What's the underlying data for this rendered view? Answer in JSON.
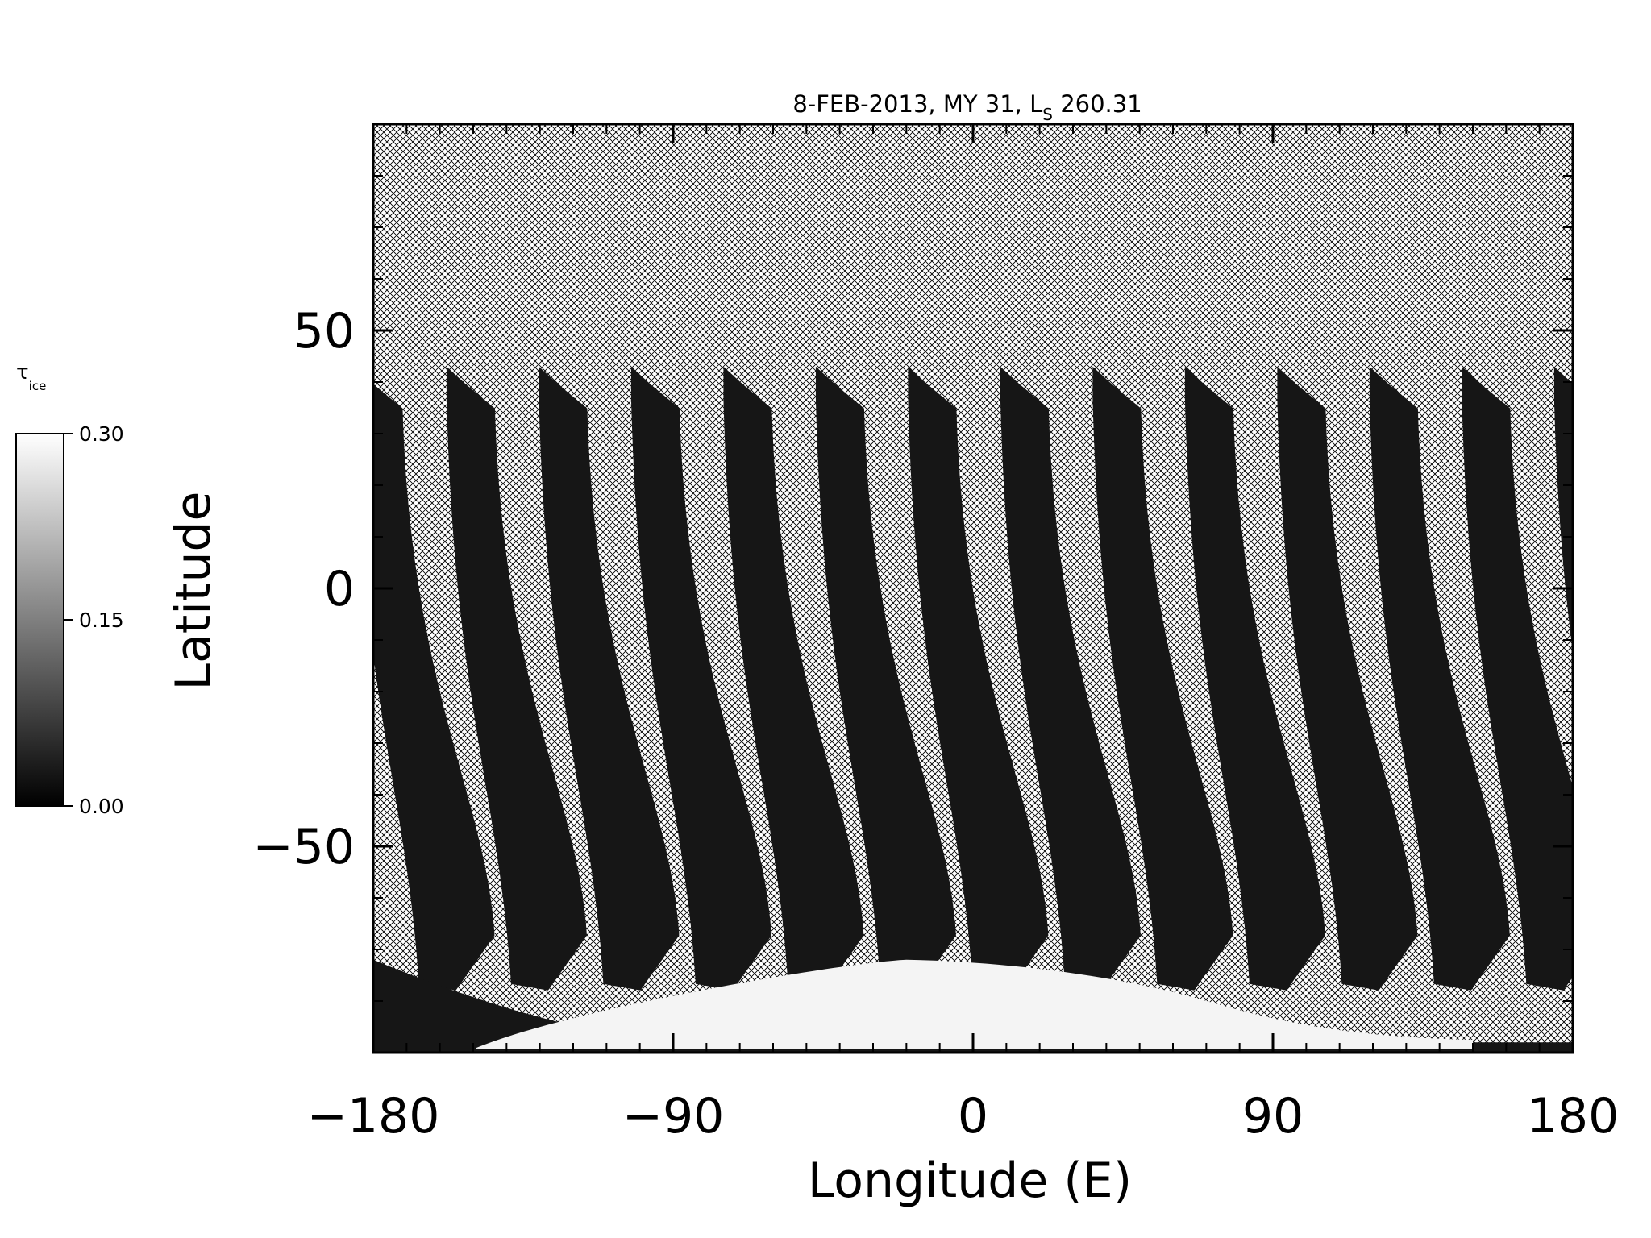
{
  "chart_data": {
    "type": "heatmap",
    "title": "8-FEB-2013, MY 31,  L",
    "title_subscript": "S",
    "title_suffix": " 260.31",
    "xlabel": "Longitude (E)",
    "ylabel": "Latitude",
    "xlim": [
      -180,
      180
    ],
    "ylim": [
      -90,
      90
    ],
    "xticks": [
      -180,
      -90,
      0,
      90,
      180
    ],
    "yticks": [
      -50,
      0,
      50
    ],
    "xtick_labels": [
      "−180",
      "−90",
      "0",
      "90",
      "180"
    ],
    "ytick_labels": [
      "−50",
      "0",
      "50"
    ],
    "colorbar": {
      "label": "τ",
      "label_subscript": "ice",
      "min": 0.0,
      "max": 0.3,
      "tick_values": [
        0.0,
        0.15,
        0.3
      ],
      "tick_labels": [
        "0.00",
        "0.15",
        "0.30"
      ],
      "colormap": "grayscale"
    },
    "swaths": {
      "count": 13,
      "first_top_longitude": -158,
      "spacing_degrees": 27.7,
      "top_latitude": 43,
      "bottom_latitude": -72
    },
    "polar_ice_region": {
      "latitude_range": [
        -90,
        -72
      ],
      "longitude_range": [
        -120,
        60
      ],
      "tau_ice": 0.3
    },
    "colors": {
      "no_data_hatch": "#000000",
      "swath_fill": "#161616",
      "ice_fill": "#f4f4f4",
      "background": "#ffffff"
    }
  }
}
